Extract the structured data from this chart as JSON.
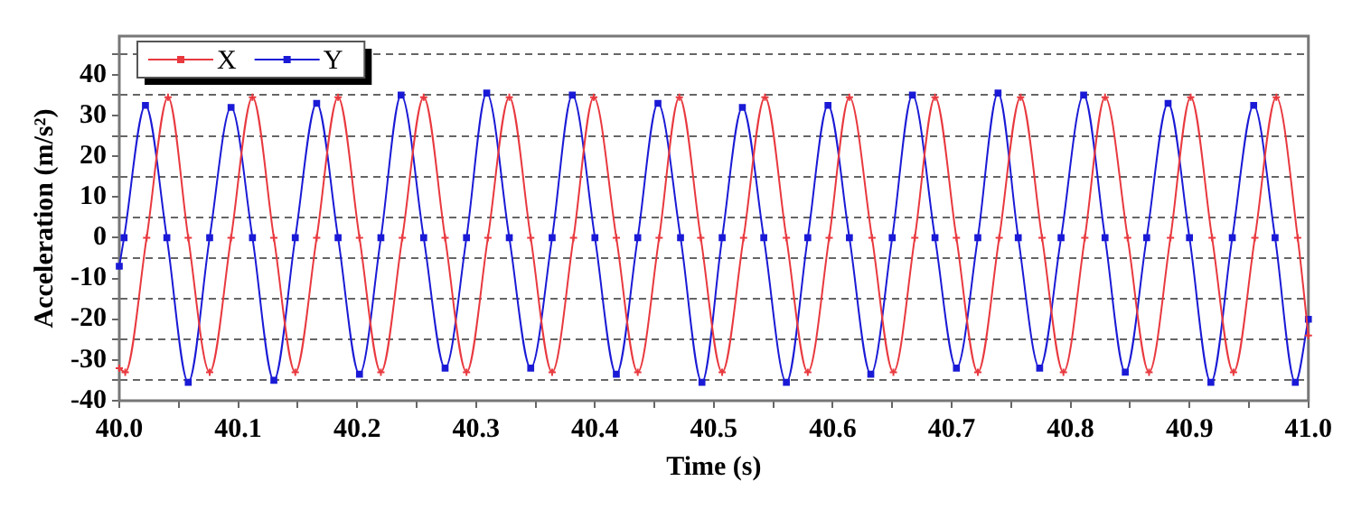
{
  "chart_data": {
    "type": "line",
    "xlabel": "Time (s)",
    "ylabel": "Acceleration (m/s²)",
    "xlim": [
      40,
      41
    ],
    "ylim": [
      -40,
      49.5
    ],
    "xticks": [
      {
        "value": 40,
        "label": "40.0"
      },
      {
        "value": 40.05,
        "label": null
      },
      {
        "value": 40.1,
        "label": "40.1"
      },
      {
        "value": 40.15,
        "label": null
      },
      {
        "value": 40.2,
        "label": "40.2"
      },
      {
        "value": 40.25,
        "label": null
      },
      {
        "value": 40.3,
        "label": "40.3"
      },
      {
        "value": 40.35,
        "label": null
      },
      {
        "value": 40.4,
        "label": "40.4"
      },
      {
        "value": 40.45,
        "label": null
      },
      {
        "value": 40.5,
        "label": "40.5"
      },
      {
        "value": 40.55,
        "label": null
      },
      {
        "value": 40.6,
        "label": "40.6"
      },
      {
        "value": 40.65,
        "label": null
      },
      {
        "value": 40.7,
        "label": "40.7"
      },
      {
        "value": 40.75,
        "label": null
      },
      {
        "value": 40.8,
        "label": "40.8"
      },
      {
        "value": 40.85,
        "label": null
      },
      {
        "value": 40.9,
        "label": "40.9"
      },
      {
        "value": 40.95,
        "label": null
      },
      {
        "value": 41,
        "label": "41.0"
      }
    ],
    "yticks": [
      -40,
      {
        "value": -35,
        "label": null
      },
      -30,
      {
        "value": -25,
        "label": null
      },
      -20,
      {
        "value": -15,
        "label": null
      },
      -10,
      {
        "value": -5,
        "label": null
      },
      0,
      {
        "value": 5,
        "label": null
      },
      10,
      {
        "value": 15,
        "label": null
      },
      20,
      {
        "value": 25,
        "label": null
      },
      30,
      {
        "value": 35,
        "label": null
      },
      40,
      {
        "value": 45,
        "label": null
      }
    ],
    "grid": "y",
    "legend": "top left",
    "line_style": "solid",
    "series": [
      {
        "name": "X",
        "color": "#e8393f",
        "marker": "cross",
        "x": [
          40,
          40.005,
          40.023,
          40.041,
          40.058,
          40.076,
          40.094,
          40.112,
          40.13,
          40.148,
          40.166,
          40.184,
          40.202,
          40.22,
          40.238,
          40.256,
          40.274,
          40.292,
          40.31,
          40.328,
          40.346,
          40.364,
          40.382,
          40.399,
          40.418,
          40.436,
          40.454,
          40.471,
          40.489,
          40.507,
          40.525,
          40.543,
          40.561,
          40.579,
          40.597,
          40.614,
          40.633,
          40.651,
          40.669,
          40.686,
          40.704,
          40.722,
          40.74,
          40.758,
          40.776,
          40.794,
          40.812,
          40.829,
          40.848,
          40.866,
          40.884,
          40.901,
          40.919,
          40.937,
          40.955,
          40.973,
          40.991,
          41
        ],
        "values": [
          -32,
          -33,
          0,
          34.5,
          0,
          -33,
          0,
          34.5,
          0,
          -33,
          0,
          34.5,
          0,
          -33,
          0,
          34.5,
          0,
          -33,
          0,
          34.5,
          0,
          -33,
          0,
          34.5,
          0,
          -33,
          0,
          34.5,
          0,
          -33,
          0,
          34.5,
          0,
          -33,
          0,
          34.5,
          0,
          -33,
          0,
          34.5,
          0,
          -33,
          0,
          34.5,
          0,
          -33,
          0,
          34.5,
          0,
          -33,
          0,
          34.5,
          0,
          -33,
          0,
          34.5,
          0,
          -24
        ]
      },
      {
        "name": "Y",
        "color": "#1a1ad6",
        "marker": "square",
        "x": [
          40,
          40.004,
          40.022,
          40.04,
          40.058,
          40.076,
          40.094,
          40.112,
          40.13,
          40.148,
          40.166,
          40.184,
          40.202,
          40.22,
          40.237,
          40.256,
          40.274,
          40.292,
          40.309,
          40.328,
          40.346,
          40.364,
          40.381,
          40.4,
          40.418,
          40.436,
          40.453,
          40.472,
          40.49,
          40.507,
          40.524,
          40.542,
          40.561,
          40.579,
          40.596,
          40.614,
          40.632,
          40.65,
          40.667,
          40.686,
          40.704,
          40.722,
          40.739,
          40.756,
          40.774,
          40.792,
          40.811,
          40.829,
          40.846,
          40.864,
          40.882,
          40.9,
          40.918,
          40.936,
          40.954,
          40.972,
          40.989,
          41
        ],
        "values": [
          -7,
          0,
          32.5,
          0,
          -35.5,
          0,
          32,
          0,
          -35,
          0,
          33,
          0,
          -33.5,
          0,
          35,
          0,
          -32,
          0,
          35.5,
          0,
          -32,
          0,
          35,
          0,
          -33.5,
          0,
          33,
          0,
          -35.5,
          0,
          32,
          0,
          -35.5,
          0,
          32.5,
          0,
          -33.5,
          0,
          35,
          0,
          -32,
          0,
          35.5,
          0,
          -32,
          0,
          35,
          0,
          -33,
          0,
          33,
          0,
          -35.5,
          0,
          32.5,
          0,
          -35.5,
          -20
        ]
      }
    ]
  }
}
